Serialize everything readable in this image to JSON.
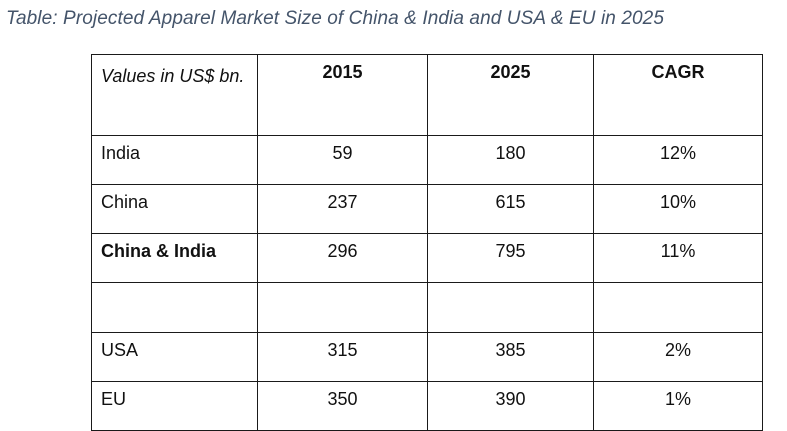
{
  "caption": "Table: Projected Apparel Market Size of China & India and USA & EU in 2025",
  "table": {
    "corner_header": "Values in US$ bn.",
    "columns": [
      "2015",
      "2025",
      "CAGR"
    ],
    "rows": [
      {
        "label": "India",
        "v2015": "59",
        "v2025": "180",
        "cagr": "12%"
      },
      {
        "label": "China",
        "v2015": "237",
        "v2025": "615",
        "cagr": "10%"
      },
      {
        "label": "China & India",
        "v2015": "296",
        "v2025": "795",
        "cagr": "11%"
      },
      {
        "label": "",
        "v2015": "",
        "v2025": "",
        "cagr": ""
      },
      {
        "label": "USA",
        "v2015": "315",
        "v2025": "385",
        "cagr": "2%"
      },
      {
        "label": "EU",
        "v2015": "350",
        "v2025": "390",
        "cagr": "1%"
      }
    ]
  }
}
